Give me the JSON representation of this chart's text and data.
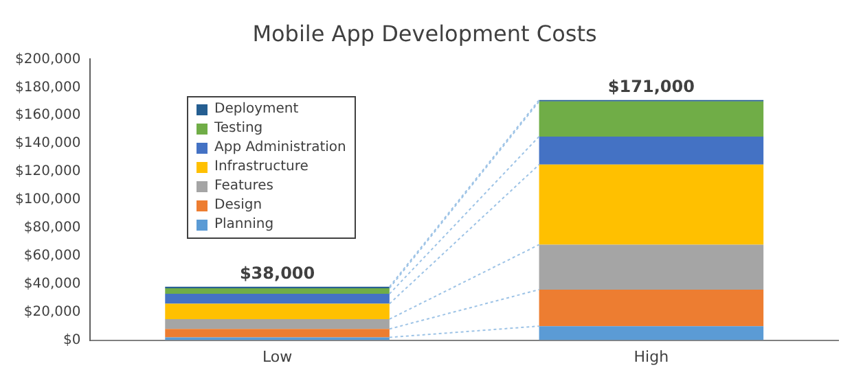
{
  "chart_data": {
    "type": "bar",
    "title": "Mobile App Development Costs",
    "categories": [
      "Low",
      "High"
    ],
    "stacked": true,
    "series": [
      {
        "name": "Planning",
        "color": "#5b9bd5",
        "values": [
          2000,
          10000
        ]
      },
      {
        "name": "Design",
        "color": "#ed7d31",
        "values": [
          6000,
          26000
        ]
      },
      {
        "name": "Features",
        "color": "#a5a5a5",
        "values": [
          7000,
          32000
        ]
      },
      {
        "name": "Infrastructure",
        "color": "#ffc000",
        "values": [
          11000,
          57000
        ]
      },
      {
        "name": "App Administration",
        "color": "#4472c4",
        "values": [
          7000,
          20000
        ]
      },
      {
        "name": "Testing",
        "color": "#70ad47",
        "values": [
          4000,
          25000
        ]
      },
      {
        "name": "Deployment",
        "color": "#255e91",
        "values": [
          1000,
          1000
        ]
      }
    ],
    "totals": [
      "$38,000",
      "$171,000"
    ],
    "ylim": [
      0,
      200000
    ],
    "yticks": [
      {
        "value": 0,
        "label": "$0"
      },
      {
        "value": 20000,
        "label": "$20,000"
      },
      {
        "value": 40000,
        "label": "$40,000"
      },
      {
        "value": 60000,
        "label": "$60,000"
      },
      {
        "value": 80000,
        "label": "$80,000"
      },
      {
        "value": 100000,
        "label": "$100,000"
      },
      {
        "value": 120000,
        "label": "$120,000"
      },
      {
        "value": 140000,
        "label": "$140,000"
      },
      {
        "value": 160000,
        "label": "$160,000"
      },
      {
        "value": 180000,
        "label": "$180,000"
      },
      {
        "value": 200000,
        "label": "$200,000"
      }
    ],
    "grid": false,
    "legend": "top left"
  }
}
